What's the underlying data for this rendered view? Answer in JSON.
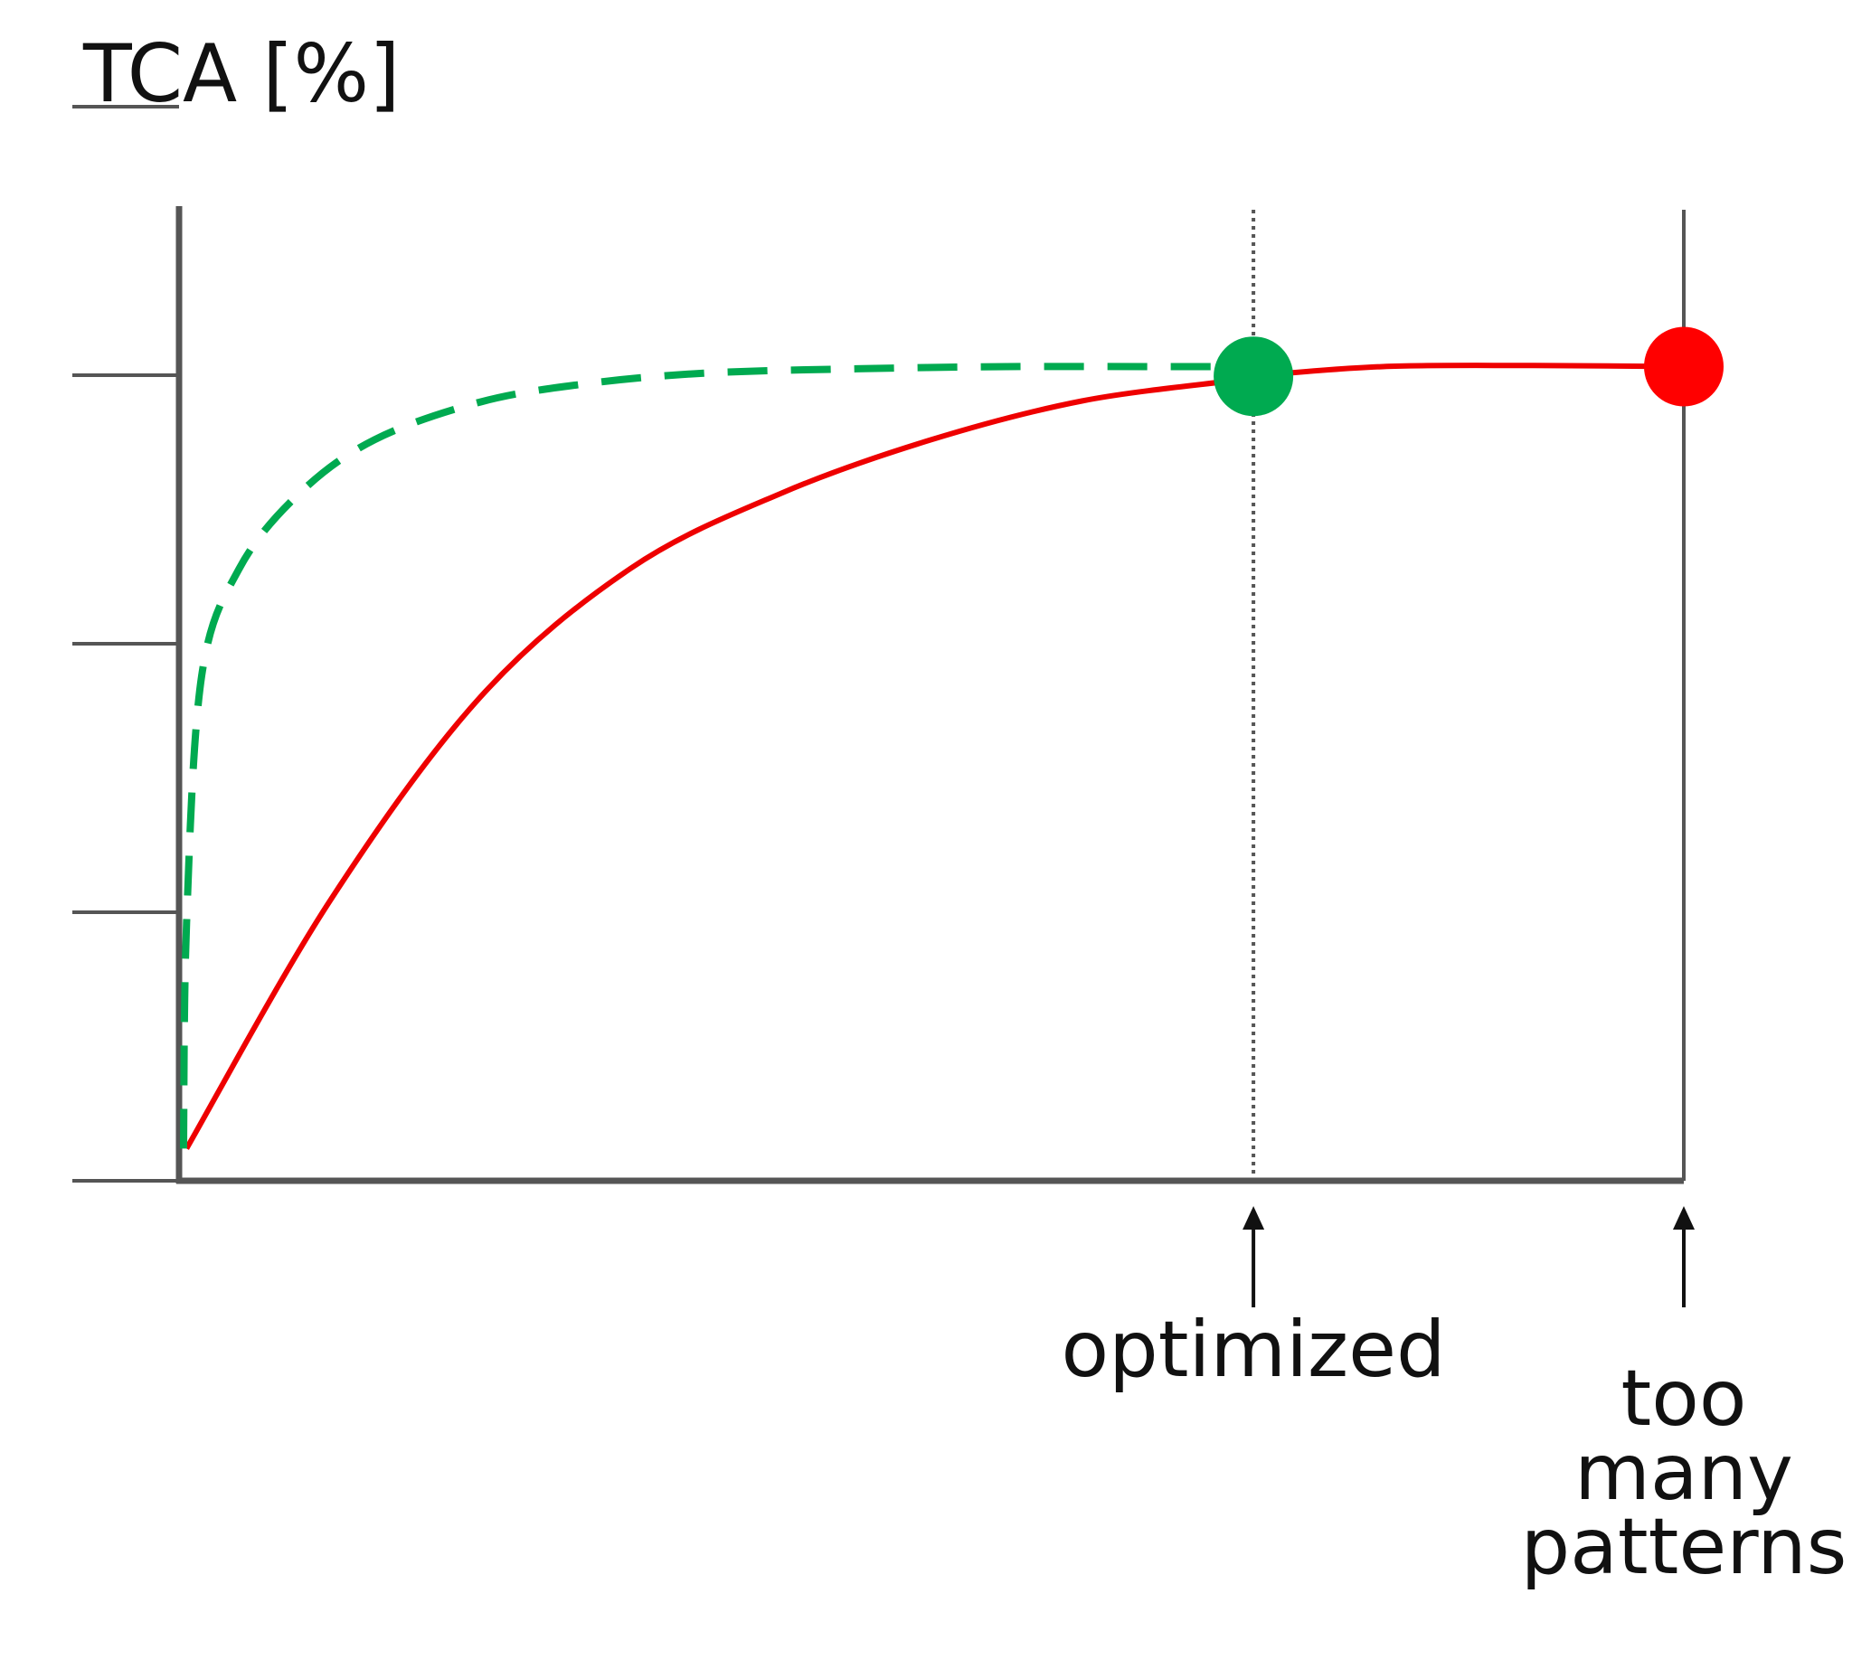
{
  "chart_data": {
    "type": "line",
    "title": "",
    "ylabel": "TCA [%]",
    "xlabel": "",
    "xlim": [
      0,
      1
    ],
    "ylim": [
      0,
      100
    ],
    "grid": false,
    "legend": "none",
    "series": [
      {
        "color": "#ee0000",
        "line_style": "solid",
        "x": [
          0.005,
          0.1,
          0.2,
          0.3,
          0.4,
          0.5,
          0.6,
          0.7,
          0.714,
          0.8,
          0.9,
          1.0
        ],
        "y": [
          3,
          26,
          45,
          57,
          64,
          69,
          72.6,
          74.5,
          74.9,
          75.8,
          75.9,
          75.8
        ]
      },
      {
        "color": "#00aa50",
        "line_style": "dashed",
        "x": [
          0.003,
          0.005,
          0.015,
          0.04,
          0.08,
          0.13,
          0.2,
          0.27,
          0.35,
          0.45,
          0.55,
          0.65,
          0.714
        ],
        "y": [
          3,
          24,
          47,
          57,
          64,
          69,
          72.5,
          74.2,
          75.2,
          75.6,
          75.8,
          75.8,
          75.8
        ]
      }
    ],
    "markers": [
      {
        "x": 0.714,
        "y": 74.9,
        "color": "#00aa50"
      },
      {
        "x": 1.0,
        "y": 75.8,
        "color": "#ff0000"
      }
    ],
    "y_ticks": [
      0,
      25,
      50,
      75,
      100
    ],
    "reference_lines": [
      {
        "x": 0.714,
        "style": "dotted"
      },
      {
        "x": 1.0,
        "style": "solid"
      }
    ],
    "annotations": [
      {
        "text": "optimized",
        "x": 0.714
      },
      {
        "text": "too many patterns",
        "x": 1.0
      }
    ],
    "colors": {
      "axis": "#555555",
      "arrow": "#111111"
    }
  }
}
